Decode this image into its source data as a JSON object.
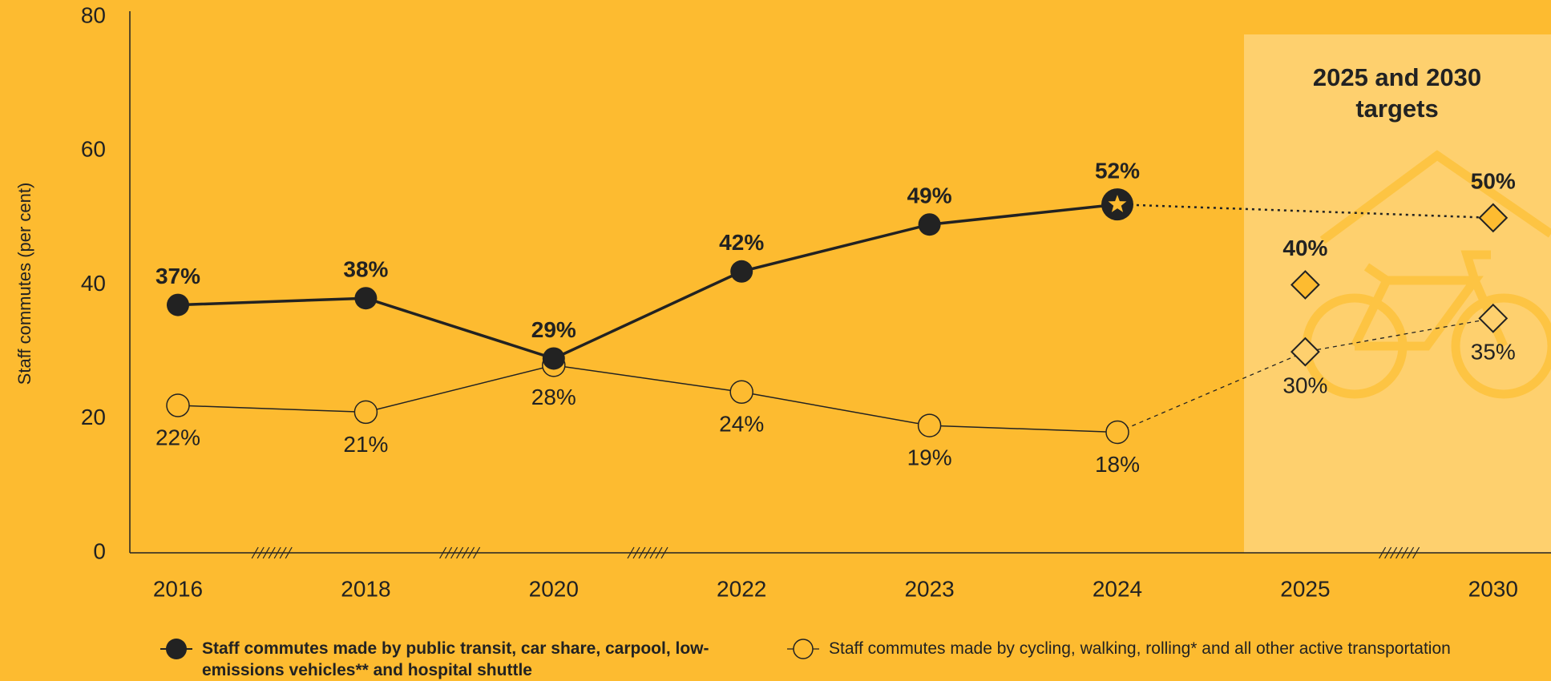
{
  "chart_data": {
    "type": "line",
    "y_label": "Staff commutes (per cent)",
    "categories": [
      "2016",
      "2018",
      "2020",
      "2022",
      "2023",
      "2024"
    ],
    "target_categories": [
      "2025",
      "2030"
    ],
    "target_title": "2025 and 2030 targets",
    "ylim": [
      0,
      80
    ],
    "yticks": [
      0,
      20,
      40,
      60,
      80
    ],
    "grid": false,
    "series": [
      {
        "name": "Staff commutes made by public transit, car share, carpool, low-emissions vehicles** and hospital shuttle",
        "color": "#222222",
        "marker": "filled",
        "label_position": "above",
        "target_link": "last",
        "highlight_last": true,
        "values": [
          37,
          38,
          29,
          42,
          49,
          52
        ],
        "value_labels": [
          "37%",
          "38%",
          "29%",
          "42%",
          "49%",
          "52%"
        ],
        "target_values": [
          40,
          50
        ],
        "target_value_labels": [
          "40%",
          "50%"
        ]
      },
      {
        "name": "Staff commutes made by cycling, walking, rolling* and all other active transportation",
        "color": "#222222",
        "marker": "open",
        "label_position": "below",
        "target_link": "all",
        "highlight_last": false,
        "values": [
          22,
          21,
          28,
          24,
          19,
          18
        ],
        "value_labels": [
          "22%",
          "21%",
          "28%",
          "24%",
          "19%",
          "18%"
        ],
        "target_values": [
          30,
          35
        ],
        "target_value_labels": [
          "30%",
          "35%"
        ]
      }
    ]
  }
}
